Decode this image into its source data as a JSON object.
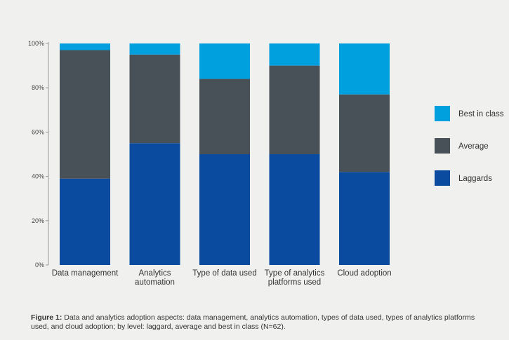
{
  "chart_data": {
    "type": "bar",
    "stacked": true,
    "categories": [
      [
        "Data management"
      ],
      [
        "Analytics",
        "automation"
      ],
      [
        "Type of data used"
      ],
      [
        "Type of analytics",
        "platforms used"
      ],
      [
        "Cloud  adoption"
      ]
    ],
    "series": [
      {
        "name": "Laggards",
        "color": "#0a4ba0",
        "values": [
          39,
          55,
          50,
          50,
          42
        ]
      },
      {
        "name": "Average",
        "color": "#485157",
        "values": [
          58,
          40,
          34,
          40,
          35
        ]
      },
      {
        "name": "Best in class",
        "color": "#00a0de",
        "values": [
          3,
          5,
          16,
          10,
          23
        ]
      }
    ],
    "ylim": [
      0,
      100
    ],
    "yticks": [
      "0%",
      "20%",
      "40%",
      "60%",
      "80%",
      "100%"
    ],
    "legend_order": [
      "Best in class",
      "Average",
      "Laggards"
    ],
    "legend_position": "right",
    "grid": false
  },
  "caption": {
    "label": "Figure 1:",
    "text": " Data and analytics adoption aspects: data management, analytics automation, types of data used, types of analytics platforms used, and cloud adoption; by level: laggard, average and  best in class (N=62)."
  }
}
